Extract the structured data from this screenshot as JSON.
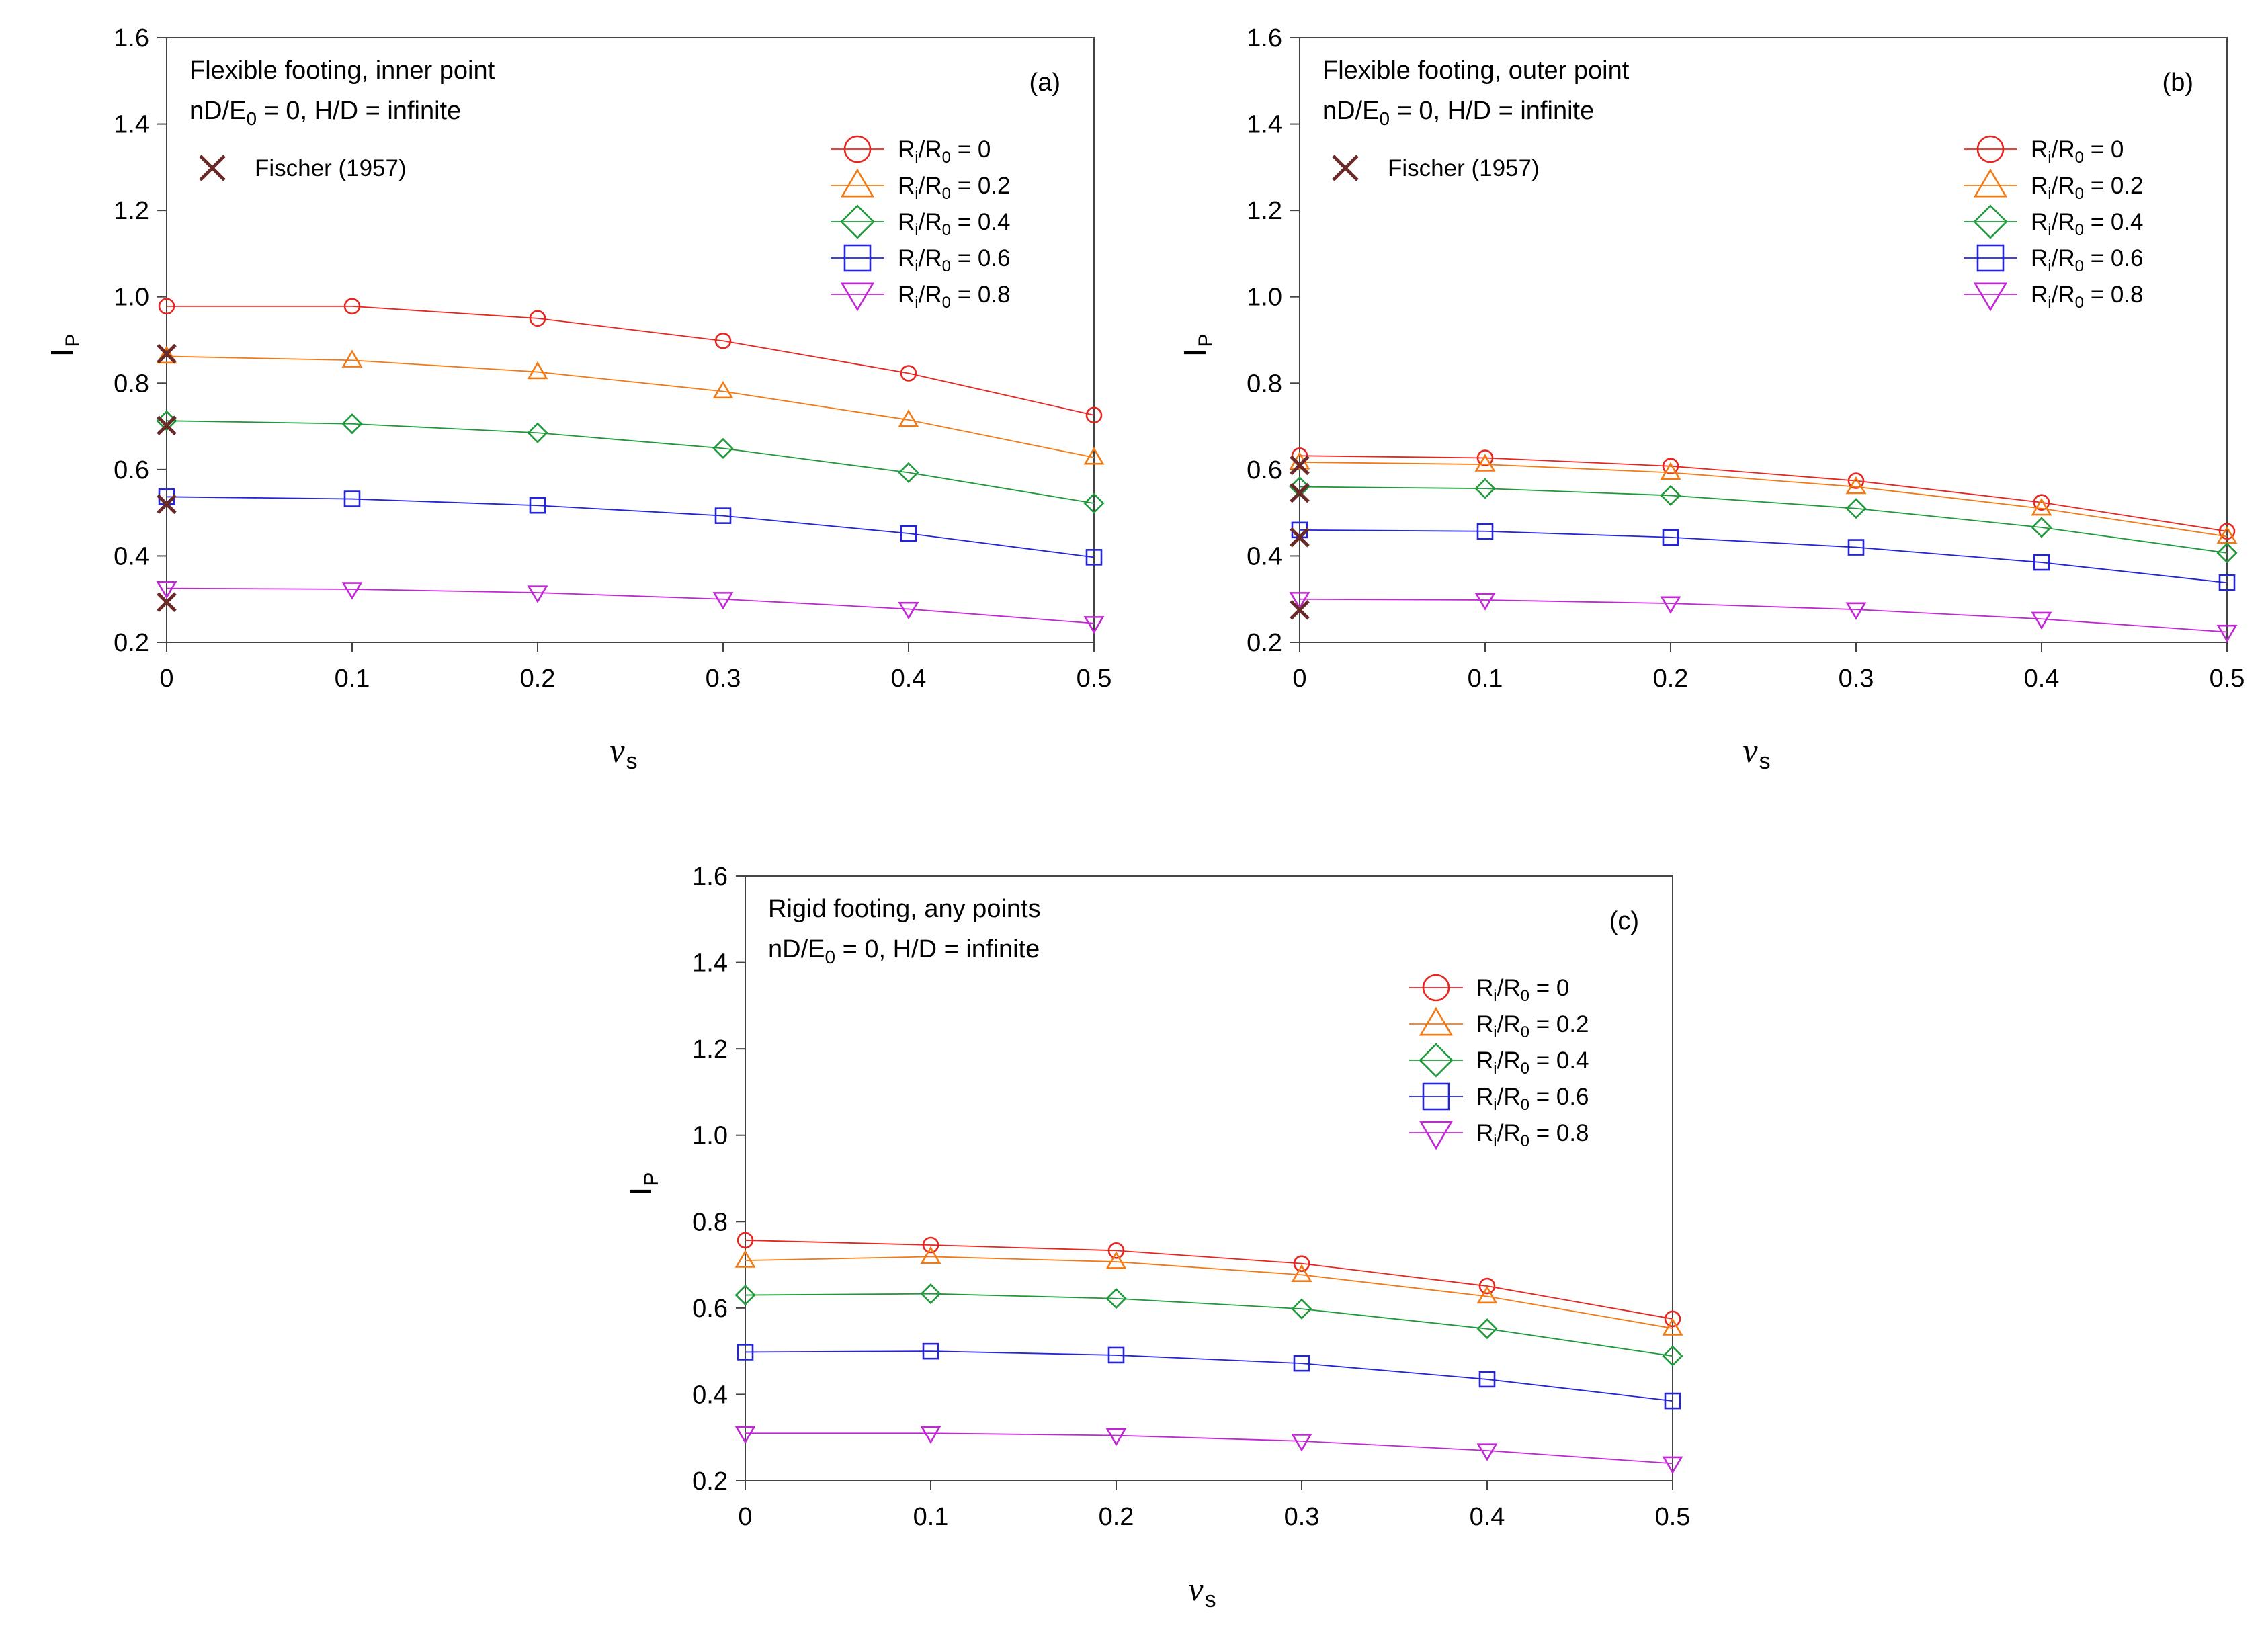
{
  "colors": {
    "r0": "#e8251f",
    "r2": "#f27a14",
    "r4": "#1e9a3a",
    "r6": "#2424d8",
    "r8": "#c226d6",
    "fischer": "#6b2a2a",
    "axis": "#444444"
  },
  "chart_data": [
    {
      "type": "line",
      "panel": "(a)",
      "annotation_lines": [
        "Flexible footing, inner point",
        "nD/E",
        "0",
        " = 0, H/D = infinite"
      ],
      "xlabel_main": "ν",
      "xlabel_sub": "s",
      "ylabel_main": "I",
      "ylabel_sub": "P",
      "xlim": [
        0,
        0.5
      ],
      "ylim": [
        0.2,
        1.6
      ],
      "x_ticks": [
        "0",
        "0.1",
        "0.2",
        "0.3",
        "0.4",
        "0.5"
      ],
      "y_ticks": [
        "0.2",
        "0.4",
        "0.6",
        "0.8",
        "1.0",
        "1.2",
        "1.4",
        "1.6"
      ],
      "legend_position": "right",
      "x": [
        0,
        0.1,
        0.2,
        0.3,
        0.4,
        0.5
      ],
      "series": [
        {
          "name": "Ri/R0 = 0",
          "name_main": "R",
          "name_sub1": "i",
          "name_mid": "/R",
          "name_sub2": "0",
          "name_tail": " = 0",
          "marker": "circle",
          "values": [
            0.978,
            0.978,
            0.95,
            0.898,
            0.823,
            0.726
          ]
        },
        {
          "name": "Ri/R0 = 0.2",
          "name_main": "R",
          "name_sub1": "i",
          "name_mid": "/R",
          "name_sub2": "0",
          "name_tail": " = 0.2",
          "marker": "triangle-up",
          "values": [
            0.862,
            0.853,
            0.826,
            0.781,
            0.715,
            0.628
          ]
        },
        {
          "name": "Ri/R0 = 0.4",
          "name_main": "R",
          "name_sub1": "i",
          "name_mid": "/R",
          "name_sub2": "0",
          "name_tail": " = 0.4",
          "marker": "diamond",
          "values": [
            0.713,
            0.706,
            0.685,
            0.649,
            0.593,
            0.522
          ]
        },
        {
          "name": "Ri/R0 = 0.6",
          "name_main": "R",
          "name_sub1": "i",
          "name_mid": "/R",
          "name_sub2": "0",
          "name_tail": " = 0.6",
          "marker": "square",
          "values": [
            0.537,
            0.532,
            0.517,
            0.493,
            0.452,
            0.397
          ]
        },
        {
          "name": "Ri/R0 = 0.8",
          "name_main": "R",
          "name_sub1": "i",
          "name_mid": "/R",
          "name_sub2": "0",
          "name_tail": " = 0.8",
          "marker": "triangle-down",
          "values": [
            0.325,
            0.323,
            0.315,
            0.3,
            0.277,
            0.244
          ]
        }
      ],
      "fischer": {
        "name": "Fischer (1957)",
        "x": [
          0,
          0,
          0,
          0
        ],
        "values": [
          0.868,
          0.702,
          0.52,
          0.293
        ]
      }
    },
    {
      "type": "line",
      "panel": "(b)",
      "annotation_lines": [
        "Flexible footing, outer point",
        "nD/E",
        "0",
        " = 0, H/D = infinite"
      ],
      "xlabel_main": "ν",
      "xlabel_sub": "s",
      "ylabel_main": "I",
      "ylabel_sub": "P",
      "xlim": [
        0,
        0.5
      ],
      "ylim": [
        0.2,
        1.6
      ],
      "x_ticks": [
        "0",
        "0.1",
        "0.2",
        "0.3",
        "0.4",
        "0.5"
      ],
      "y_ticks": [
        "0.2",
        "0.4",
        "0.6",
        "0.8",
        "1.0",
        "1.2",
        "1.4",
        "1.6"
      ],
      "legend_position": "right",
      "x": [
        0,
        0.1,
        0.2,
        0.3,
        0.4,
        0.5
      ],
      "series": [
        {
          "name": "Ri/R0 = 0",
          "name_main": "R",
          "name_sub1": "i",
          "name_mid": "/R",
          "name_sub2": "0",
          "name_tail": " = 0",
          "marker": "circle",
          "values": [
            0.632,
            0.627,
            0.608,
            0.574,
            0.524,
            0.457
          ]
        },
        {
          "name": "Ri/R0 = 0.2",
          "name_main": "R",
          "name_sub1": "i",
          "name_mid": "/R",
          "name_sub2": "0",
          "name_tail": " = 0.2",
          "marker": "triangle-up",
          "values": [
            0.617,
            0.612,
            0.593,
            0.56,
            0.51,
            0.445
          ]
        },
        {
          "name": "Ri/R0 = 0.4",
          "name_main": "R",
          "name_sub1": "i",
          "name_mid": "/R",
          "name_sub2": "0",
          "name_tail": " = 0.4",
          "marker": "diamond",
          "values": [
            0.56,
            0.556,
            0.54,
            0.51,
            0.466,
            0.407
          ]
        },
        {
          "name": "Ri/R0 = 0.6",
          "name_main": "R",
          "name_sub1": "i",
          "name_mid": "/R",
          "name_sub2": "0",
          "name_tail": " = 0.6",
          "marker": "square",
          "values": [
            0.46,
            0.457,
            0.443,
            0.42,
            0.385,
            0.338
          ]
        },
        {
          "name": "Ri/R0 = 0.8",
          "name_main": "R",
          "name_sub1": "i",
          "name_mid": "/R",
          "name_sub2": "0",
          "name_tail": " = 0.8",
          "marker": "triangle-down",
          "values": [
            0.3,
            0.298,
            0.29,
            0.276,
            0.254,
            0.224
          ]
        }
      ],
      "fischer": {
        "name": "Fischer (1957)",
        "x": [
          0,
          0,
          0,
          0
        ],
        "values": [
          0.61,
          0.546,
          0.443,
          0.275
        ]
      }
    },
    {
      "type": "line",
      "panel": "(c)",
      "annotation_lines": [
        "Rigid footing, any points",
        "nD/E",
        "0",
        " = 0, H/D = infinite"
      ],
      "xlabel_main": "ν",
      "xlabel_sub": "s",
      "ylabel_main": "I",
      "ylabel_sub": "P",
      "xlim": [
        0,
        0.5
      ],
      "ylim": [
        0.2,
        1.6
      ],
      "x_ticks": [
        "0",
        "0.1",
        "0.2",
        "0.3",
        "0.4",
        "0.5"
      ],
      "y_ticks": [
        "0.2",
        "0.4",
        "0.6",
        "0.8",
        "1.0",
        "1.2",
        "1.4",
        "1.6"
      ],
      "legend_position": "right",
      "x": [
        0,
        0.1,
        0.2,
        0.3,
        0.4,
        0.5
      ],
      "series": [
        {
          "name": "Ri/R0 = 0",
          "name_main": "R",
          "name_sub1": "i",
          "name_mid": "/R",
          "name_sub2": "0",
          "name_tail": " = 0",
          "marker": "circle",
          "values": [
            0.757,
            0.746,
            0.733,
            0.703,
            0.651,
            0.575
          ]
        },
        {
          "name": "Ri/R0 = 0.2",
          "name_main": "R",
          "name_sub1": "i",
          "name_mid": "/R",
          "name_sub2": "0",
          "name_tail": " = 0.2",
          "marker": "triangle-up",
          "values": [
            0.71,
            0.719,
            0.707,
            0.677,
            0.627,
            0.553
          ]
        },
        {
          "name": "Ri/R0 = 0.4",
          "name_main": "R",
          "name_sub1": "i",
          "name_mid": "/R",
          "name_sub2": "0",
          "name_tail": " = 0.4",
          "marker": "diamond",
          "values": [
            0.63,
            0.633,
            0.622,
            0.598,
            0.552,
            0.489
          ]
        },
        {
          "name": "Ri/R0 = 0.6",
          "name_main": "R",
          "name_sub1": "i",
          "name_mid": "/R",
          "name_sub2": "0",
          "name_tail": " = 0.6",
          "marker": "square",
          "values": [
            0.498,
            0.5,
            0.491,
            0.472,
            0.435,
            0.385
          ]
        },
        {
          "name": "Ri/R0 = 0.8",
          "name_main": "R",
          "name_sub1": "i",
          "name_mid": "/R",
          "name_sub2": "0",
          "name_tail": " = 0.8",
          "marker": "triangle-down",
          "values": [
            0.31,
            0.31,
            0.305,
            0.292,
            0.27,
            0.24
          ]
        }
      ]
    }
  ]
}
